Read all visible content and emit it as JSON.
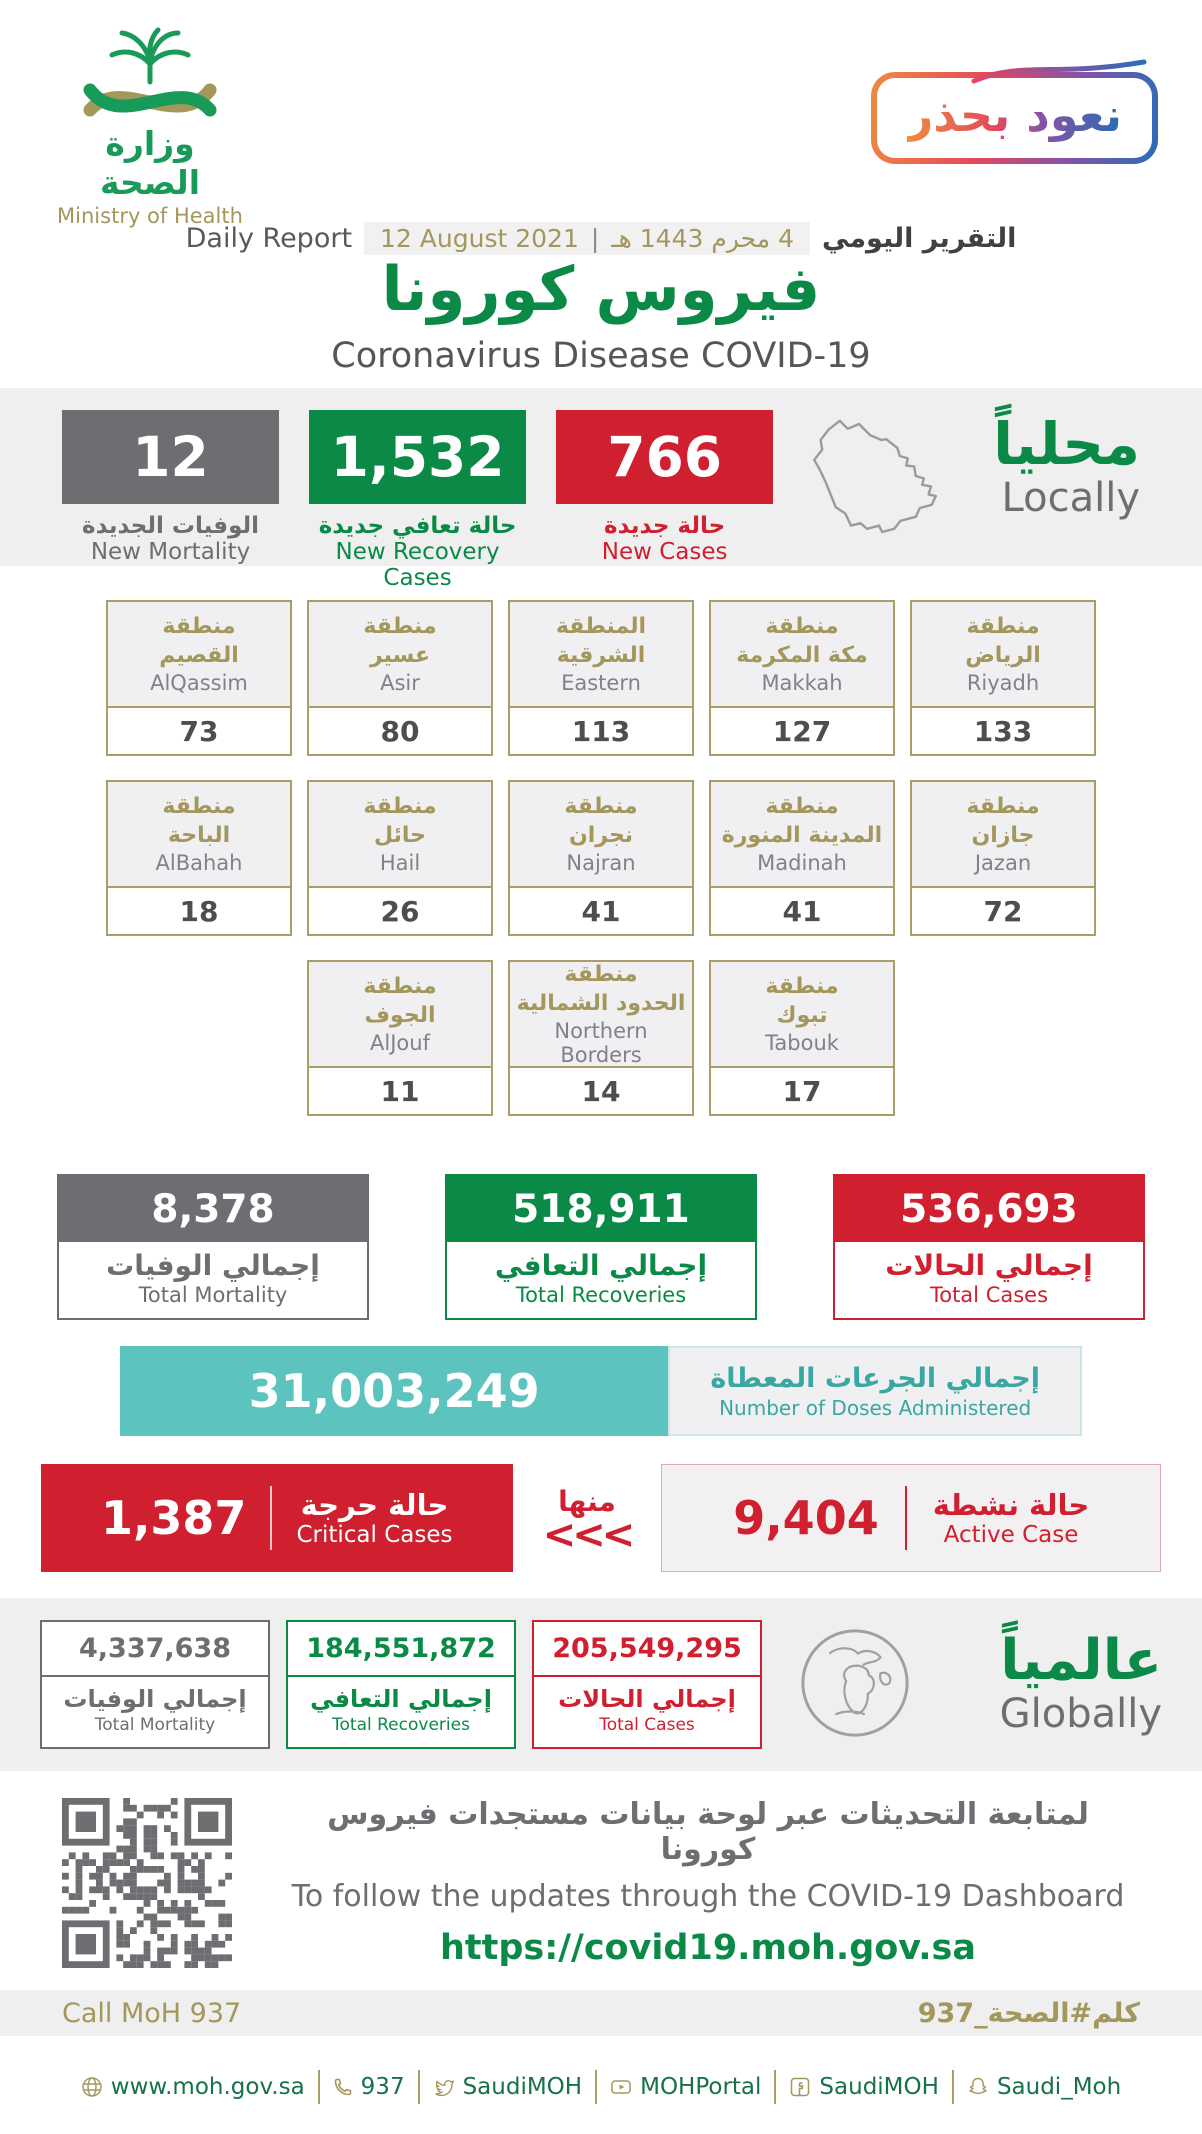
{
  "colors": {
    "green": "#0a8a46",
    "red": "#d01f2f",
    "gray": "#6d6e71",
    "teal": "#5cc3be",
    "tan": "#a3975c",
    "band_bg": "#efeff0"
  },
  "header": {
    "logo": {
      "ar": "وزارة الصحة",
      "en": "Ministry of Health"
    },
    "badge": {
      "text": "نعود بحذر"
    },
    "report": {
      "en_label": "Daily Report",
      "date_en": "12 August 2021",
      "separator": "|",
      "date_hijri": "4 محرم 1443 هـ",
      "ar_label": "التقرير اليومي"
    },
    "title_ar": "فيروس كورونا",
    "title_en": "Coronavirus Disease COVID-19"
  },
  "locally": {
    "heading_ar": "محلياً",
    "heading_en": "Locally",
    "stats": [
      {
        "id": "new-mortality",
        "value": "12",
        "label_ar": "الوفيات الجديدة",
        "label_en": "New Mortality",
        "color": "#6d6e71"
      },
      {
        "id": "new-recoveries",
        "value": "1,532",
        "label_ar": "حالة تعافي جديدة",
        "label_en": "New Recovery Cases",
        "color": "#0a8a46"
      },
      {
        "id": "new-cases",
        "value": "766",
        "label_ar": "حالة جديدة",
        "label_en": "New Cases",
        "color": "#d01f2f"
      }
    ]
  },
  "regions": {
    "items": [
      {
        "ar_line1": "منطقة",
        "ar_line2": "القصيم",
        "en": "AlQassim",
        "value": "73"
      },
      {
        "ar_line1": "منطقة",
        "ar_line2": "عسير",
        "en": "Asir",
        "value": "80"
      },
      {
        "ar_line1": "المنطقة",
        "ar_line2": "الشرقية",
        "en": "Eastern",
        "value": "113"
      },
      {
        "ar_line1": "منطقة",
        "ar_line2": "مكة المكرمة",
        "en": "Makkah",
        "value": "127"
      },
      {
        "ar_line1": "منطقة",
        "ar_line2": "الرياض",
        "en": "Riyadh",
        "value": "133"
      },
      {
        "ar_line1": "منطقة",
        "ar_line2": "الباحة",
        "en": "AlBahah",
        "value": "18"
      },
      {
        "ar_line1": "منطقة",
        "ar_line2": "حائل",
        "en": "Hail",
        "value": "26"
      },
      {
        "ar_line1": "منطقة",
        "ar_line2": "نجران",
        "en": "Najran",
        "value": "41"
      },
      {
        "ar_line1": "منطقة",
        "ar_line2": "المدينة المنورة",
        "en": "Madinah",
        "value": "41"
      },
      {
        "ar_line1": "منطقة",
        "ar_line2": "جازان",
        "en": "Jazan",
        "value": "72"
      },
      {
        "ar_line1": "منطقة",
        "ar_line2": "الجوف",
        "en": "AlJouf",
        "value": "11"
      },
      {
        "ar_line1": "منطقة",
        "ar_line2": "الحدود الشمالية",
        "en": "Northern Borders",
        "value": "14"
      },
      {
        "ar_line1": "منطقة",
        "ar_line2": "تبوك",
        "en": "Tabouk",
        "value": "17"
      }
    ]
  },
  "totals": {
    "items": [
      {
        "id": "total-mortality",
        "value": "8,378",
        "label_ar": "إجمالي الوفيات",
        "label_en": "Total Mortality",
        "color": "#6d6e71"
      },
      {
        "id": "total-recoveries",
        "value": "518,911",
        "label_ar": "إجمالي التعافي",
        "label_en": "Total Recoveries",
        "color": "#0a8a46"
      },
      {
        "id": "total-cases",
        "value": "536,693",
        "label_ar": "إجمالي الحالات",
        "label_en": "Total Cases",
        "color": "#d01f2f"
      }
    ]
  },
  "doses": {
    "value": "31,003,249",
    "label_ar": "إجمالي الجرعات المعطاة",
    "label_en": "Number of Doses Administered"
  },
  "critical_active": {
    "critical": {
      "value": "1,387",
      "label_ar": "حالة حرجة",
      "label_en": "Critical Cases"
    },
    "of_which_label": "منها",
    "chevrons": "<<<",
    "active": {
      "value": "9,404",
      "label_ar": "حالة نشطة",
      "label_en": "Active Case"
    }
  },
  "globally": {
    "heading_ar": "عالمياً",
    "heading_en": "Globally",
    "items": [
      {
        "id": "global-mortality",
        "value": "4,337,638",
        "label_ar": "إجمالي الوفيات",
        "label_en": "Total Mortality",
        "color": "#6d6e71"
      },
      {
        "id": "global-recoveries",
        "value": "184,551,872",
        "label_ar": "إجمالي التعافي",
        "label_en": "Total Recoveries",
        "color": "#0a8a46"
      },
      {
        "id": "global-cases",
        "value": "205,549,295",
        "label_ar": "إجمالي الحالات",
        "label_en": "Total Cases",
        "color": "#d01f2f"
      }
    ]
  },
  "dashboard": {
    "line_ar": "لمتابعة التحديثات عبر لوحة بيانات مستجدات فيروس كورونا",
    "line_en": "To follow the updates through the COVID-19 Dashboard",
    "url": "https://covid19.moh.gov.sa"
  },
  "footer": {
    "call_en": "Call MoH 937",
    "call_ar": "كلم#الصحة_937",
    "links": [
      {
        "icon": "globe",
        "text": "www.moh.gov.sa"
      },
      {
        "icon": "phone",
        "text": "937"
      },
      {
        "icon": "twitter",
        "text": "SaudiMOH"
      },
      {
        "icon": "youtube",
        "text": "MOHPortal"
      },
      {
        "icon": "facebook",
        "text": "SaudiMOH"
      },
      {
        "icon": "snapchat",
        "text": "Saudi_Moh"
      }
    ]
  }
}
